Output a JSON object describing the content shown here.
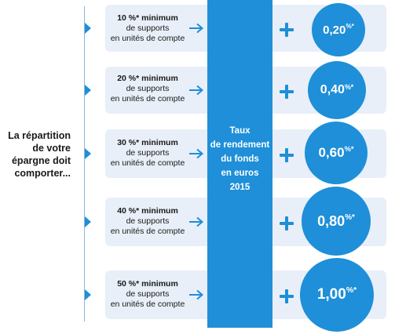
{
  "intro": {
    "lines": [
      "La répartition",
      "de votre",
      "épargne doit",
      "comporter..."
    ]
  },
  "center": {
    "lines": [
      "Taux",
      "de rendement",
      "du fonds",
      "en euros",
      "2015"
    ]
  },
  "tiers": [
    {
      "percent_line": "10 %* minimum",
      "line2": "de supports",
      "line3": "en unités de compte",
      "bonus": "0,20",
      "bonus_suffix": "%*"
    },
    {
      "percent_line": "20 %* minimum",
      "line2": "de supports",
      "line3": "en unités de compte",
      "bonus": "0,40",
      "bonus_suffix": "%*"
    },
    {
      "percent_line": "30 %* minimum",
      "line2": "de supports",
      "line3": "en unités de compte",
      "bonus": "0,60",
      "bonus_suffix": "%*"
    },
    {
      "percent_line": "40 %* minimum",
      "line2": "de supports",
      "line3": "en unités de compte",
      "bonus": "0,80",
      "bonus_suffix": "%*"
    },
    {
      "percent_line": "50 %* minimum",
      "line2": "de supports",
      "line3": "en unités de compte",
      "bonus": "1,00",
      "bonus_suffix": "%*"
    }
  ],
  "colors": {
    "accent": "#1e8fd8",
    "card": "#e8eff8",
    "line": "#8fb6dc"
  }
}
